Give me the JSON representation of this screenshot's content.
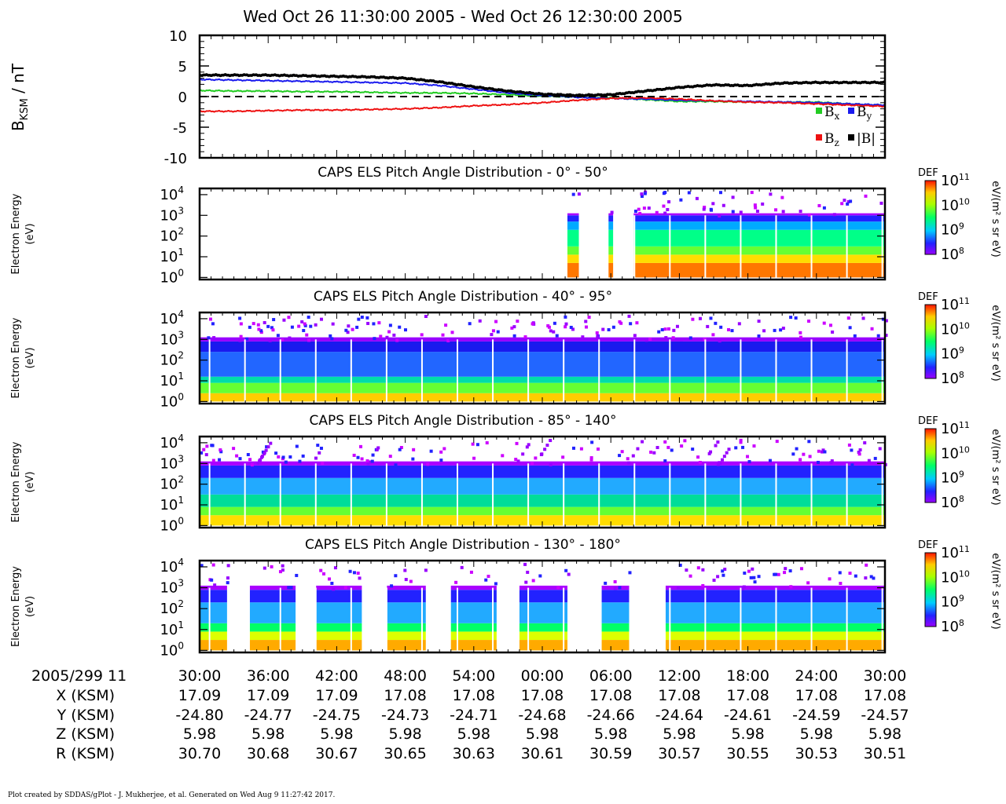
{
  "title": "Wed Oct 26 11:30:00 2005 - Wed Oct 26 12:30:00 2005",
  "footer": "Plot created by SDDAS/gPlot - J. Mukherjee, et al.  Generated on Wed Aug 9 11:27:42 2017.",
  "colors": {
    "bx": "#22cc22",
    "by": "#1a1aee",
    "bz": "#ee1111",
    "bmag": "#000000"
  },
  "chart_data": [
    {
      "type": "line",
      "ylabel": "B",
      "ylabel_sub": "KSM",
      "ylabel_unit": " / nT",
      "ylim": [
        -10,
        10
      ],
      "yticks": [
        "10",
        "5",
        "0",
        "-5",
        "-10"
      ],
      "xlim": [
        0,
        60
      ],
      "legend": [
        "B",
        "B",
        "B",
        "|B|"
      ],
      "legend_subs": [
        "x",
        "y",
        "z",
        ""
      ],
      "series": [
        {
          "key": "bx",
          "x": [
            0,
            3,
            6,
            9,
            12,
            15,
            18,
            21,
            24,
            27,
            30,
            33,
            36,
            39,
            42,
            45,
            48,
            51,
            54,
            57,
            60
          ],
          "values": [
            1.0,
            0.9,
            0.9,
            0.8,
            0.8,
            0.7,
            0.6,
            0.6,
            0.5,
            0.3,
            0.1,
            -0.1,
            -0.2,
            -0.5,
            -0.8,
            -0.8,
            -0.9,
            -0.9,
            -0.9,
            -1.2,
            -1.4
          ]
        },
        {
          "key": "by",
          "x": [
            0,
            3,
            6,
            9,
            12,
            15,
            18,
            21,
            24,
            27,
            30,
            33,
            36,
            39,
            42,
            45,
            48,
            51,
            54,
            57,
            60
          ],
          "values": [
            2.8,
            2.7,
            2.6,
            2.5,
            2.4,
            2.3,
            2.2,
            1.8,
            1.2,
            0.6,
            0.2,
            -0.1,
            -0.3,
            -0.4,
            -0.6,
            -0.7,
            -0.8,
            -0.9,
            -1.0,
            -1.2,
            -1.4
          ]
        },
        {
          "key": "bz",
          "x": [
            0,
            3,
            6,
            9,
            12,
            15,
            18,
            21,
            24,
            27,
            30,
            33,
            36,
            39,
            42,
            45,
            48,
            51,
            54,
            57,
            60
          ],
          "values": [
            -2.4,
            -2.4,
            -2.3,
            -2.2,
            -2.2,
            -2.1,
            -2.0,
            -1.8,
            -1.5,
            -1.3,
            -1.0,
            -0.6,
            -0.3,
            -0.2,
            -0.4,
            -0.7,
            -0.9,
            -1.0,
            -1.2,
            -1.4,
            -1.6
          ]
        },
        {
          "key": "bmag",
          "x": [
            0,
            3,
            6,
            9,
            12,
            15,
            18,
            21,
            24,
            27,
            30,
            33,
            36,
            39,
            42,
            45,
            48,
            51,
            54,
            57,
            60
          ],
          "values": [
            3.5,
            3.5,
            3.5,
            3.4,
            3.3,
            3.2,
            3.0,
            2.4,
            1.6,
            0.9,
            0.4,
            0.2,
            0.3,
            0.9,
            1.5,
            1.9,
            1.8,
            2.2,
            2.3,
            2.3,
            2.3
          ]
        }
      ]
    },
    {
      "type": "heatmap",
      "title": "CAPS ELS Pitch Angle Distribution - 0° - 50°",
      "ylabel": [
        "Electron Energy",
        "(eV)"
      ],
      "colorbar_label": "DEF",
      "colorbar_unit": "eV/(m² s sr eV)",
      "covered": [
        [
          32.2,
          33.2
        ],
        [
          35.8,
          36.2
        ],
        [
          38.0,
          60
        ]
      ],
      "fill_bands": [
        [
          0,
          0.7,
          "#ff7700"
        ],
        [
          0.7,
          1.1,
          "#ffdd00"
        ],
        [
          1.1,
          1.5,
          "#66ff33"
        ],
        [
          1.5,
          2.3,
          "#00ff88"
        ],
        [
          2.3,
          2.7,
          "#00aaff"
        ],
        [
          2.7,
          3.0,
          "#2222ff"
        ],
        [
          3.0,
          3.1,
          "#aa00ff"
        ]
      ]
    },
    {
      "type": "heatmap",
      "title": "CAPS ELS Pitch Angle Distribution - 40° - 95°",
      "ylabel": [
        "Electron Energy",
        "(eV)"
      ],
      "colorbar_label": "DEF",
      "colorbar_unit": "eV/(m² s sr eV)",
      "covered": [
        [
          0,
          60
        ]
      ],
      "fill_bands": [
        [
          0,
          0.4,
          "#ffcc00"
        ],
        [
          0.4,
          0.9,
          "#66ff33"
        ],
        [
          0.9,
          1.2,
          "#00ddaa"
        ],
        [
          1.2,
          2.4,
          "#2266ff"
        ],
        [
          2.4,
          2.9,
          "#1a1aee"
        ],
        [
          2.9,
          3.1,
          "#9900ff"
        ]
      ]
    },
    {
      "type": "heatmap",
      "title": "CAPS ELS Pitch Angle Distribution - 85° - 140°",
      "ylabel": [
        "Electron Energy",
        "(eV)"
      ],
      "colorbar_label": "DEF",
      "colorbar_unit": "eV/(m² s sr eV)",
      "covered": [
        [
          0,
          60
        ]
      ],
      "fill_bands": [
        [
          0,
          0.5,
          "#ffdd00"
        ],
        [
          0.5,
          0.9,
          "#66ff33"
        ],
        [
          0.9,
          1.5,
          "#00dd99"
        ],
        [
          1.5,
          2.3,
          "#22aaff"
        ],
        [
          2.3,
          2.9,
          "#2222ff"
        ],
        [
          2.9,
          3.1,
          "#aa00ff"
        ]
      ]
    },
    {
      "type": "heatmap",
      "title": "CAPS ELS Pitch Angle Distribution - 130° - 180°",
      "ylabel": [
        "Electron Energy",
        "(eV)"
      ],
      "colorbar_label": "DEF",
      "colorbar_unit": "eV/(m² s sr eV)",
      "covered": [
        [
          0,
          2.4
        ],
        [
          4.4,
          8.4
        ],
        [
          10.2,
          14.2
        ],
        [
          16.4,
          19.8
        ],
        [
          22,
          26
        ],
        [
          28,
          32.2
        ],
        [
          35.2,
          37.6
        ],
        [
          40.8,
          60
        ]
      ],
      "fill_bands": [
        [
          0,
          0.5,
          "#ffaa00"
        ],
        [
          0.5,
          0.9,
          "#ddff00"
        ],
        [
          0.9,
          1.3,
          "#00ff66"
        ],
        [
          1.3,
          2.3,
          "#22aaff"
        ],
        [
          2.3,
          2.9,
          "#2222ff"
        ],
        [
          2.9,
          3.1,
          "#aa00ff"
        ]
      ]
    }
  ],
  "energy_ticks": [
    "10",
    "10",
    "10",
    "10",
    "10"
  ],
  "energy_exps": [
    "0",
    "1",
    "2",
    "3",
    "4"
  ],
  "colorbar_ticks": [
    "10",
    "10",
    "10",
    "10"
  ],
  "colorbar_exps": [
    "8",
    "9",
    "10",
    "11"
  ],
  "ephemeris": {
    "row_labels": [
      "2005/299 11",
      "X (KSM)",
      "Y (KSM)",
      "Z (KSM)",
      "R (KSM)"
    ],
    "columns": [
      [
        "30:00",
        "17.09",
        "-24.80",
        "5.98",
        "30.70"
      ],
      [
        "36:00",
        "17.09",
        "-24.77",
        "5.98",
        "30.68"
      ],
      [
        "42:00",
        "17.09",
        "-24.75",
        "5.98",
        "30.67"
      ],
      [
        "48:00",
        "17.08",
        "-24.73",
        "5.98",
        "30.65"
      ],
      [
        "54:00",
        "17.08",
        "-24.71",
        "5.98",
        "30.63"
      ],
      [
        "00:00",
        "17.08",
        "-24.68",
        "5.98",
        "30.61"
      ],
      [
        "06:00",
        "17.08",
        "-24.66",
        "5.98",
        "30.59"
      ],
      [
        "12:00",
        "17.08",
        "-24.64",
        "5.98",
        "30.57"
      ],
      [
        "18:00",
        "17.08",
        "-24.61",
        "5.98",
        "30.55"
      ],
      [
        "24:00",
        "17.08",
        "-24.59",
        "5.98",
        "30.53"
      ],
      [
        "30:00",
        "17.08",
        "-24.57",
        "5.98",
        "30.51"
      ]
    ]
  }
}
